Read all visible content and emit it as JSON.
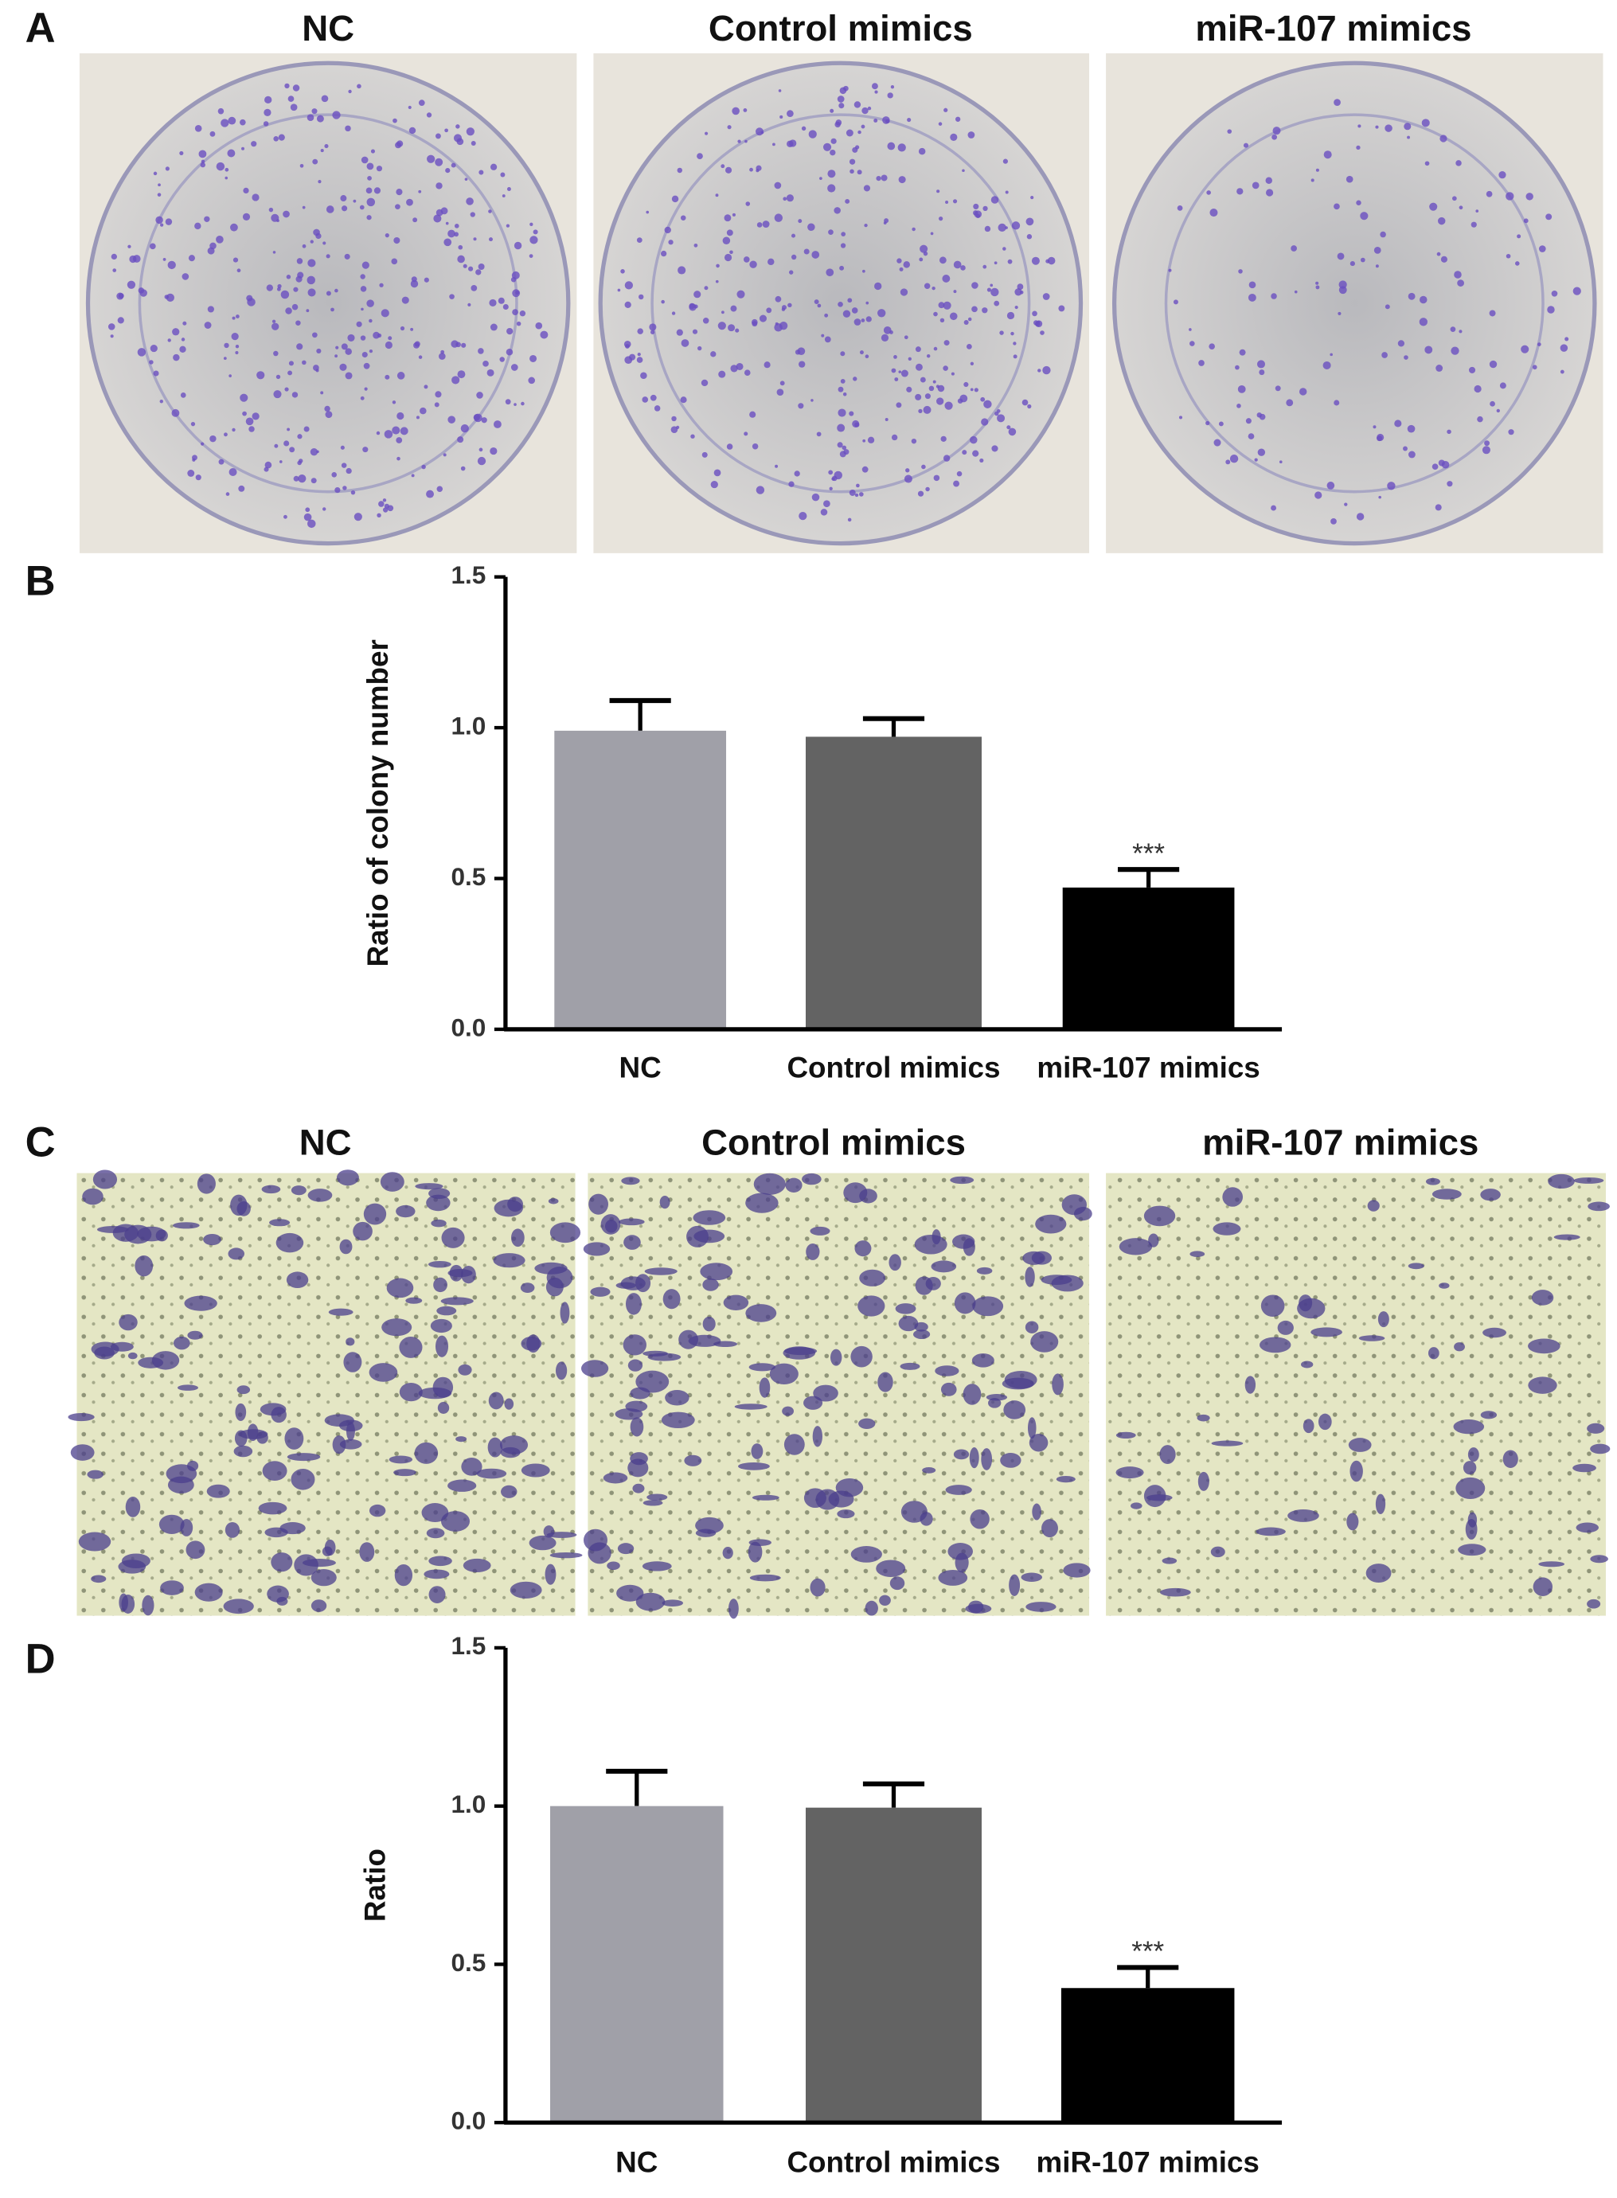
{
  "panels": [
    {
      "label": "A",
      "image_titles": [
        "NC",
        "Control mimics",
        "miR-107 mimics"
      ]
    },
    {
      "label": "C",
      "image_titles": [
        "NC",
        "Control mimics",
        "miR-107 mimics"
      ]
    }
  ],
  "chart_data": [
    {
      "type": "bar",
      "panel_label": "B",
      "ylabel": "Ratio of colony number",
      "categories": [
        "NC",
        "Control mimics",
        "miR-107 mimics"
      ],
      "values": [
        0.99,
        0.97,
        0.47
      ],
      "errors": [
        0.1,
        0.06,
        0.06
      ],
      "colors": [
        "#a0a0a8",
        "#636363",
        "#000000"
      ],
      "significance": [
        null,
        null,
        "***"
      ],
      "ylim": [
        0,
        1.5
      ],
      "yticks": [
        {
          "value": 0,
          "label": "0.0"
        },
        0.5,
        {
          "value": 1,
          "label": "1.0"
        },
        1.5
      ]
    },
    {
      "type": "bar",
      "panel_label": "D",
      "ylabel": "Ratio",
      "categories": [
        "NC",
        "Control mimics",
        "miR-107 mimics"
      ],
      "values": [
        1.0,
        0.995,
        0.425
      ],
      "errors": [
        0.11,
        0.075,
        0.065
      ],
      "colors": [
        "#a0a0a8",
        "#636363",
        "#000000"
      ],
      "significance": [
        null,
        null,
        "***"
      ],
      "ylim": [
        0,
        1.5
      ],
      "yticks": [
        {
          "value": 0,
          "label": "0.0"
        },
        0.5,
        {
          "value": 1,
          "label": "1.0"
        },
        1.5
      ]
    }
  ]
}
